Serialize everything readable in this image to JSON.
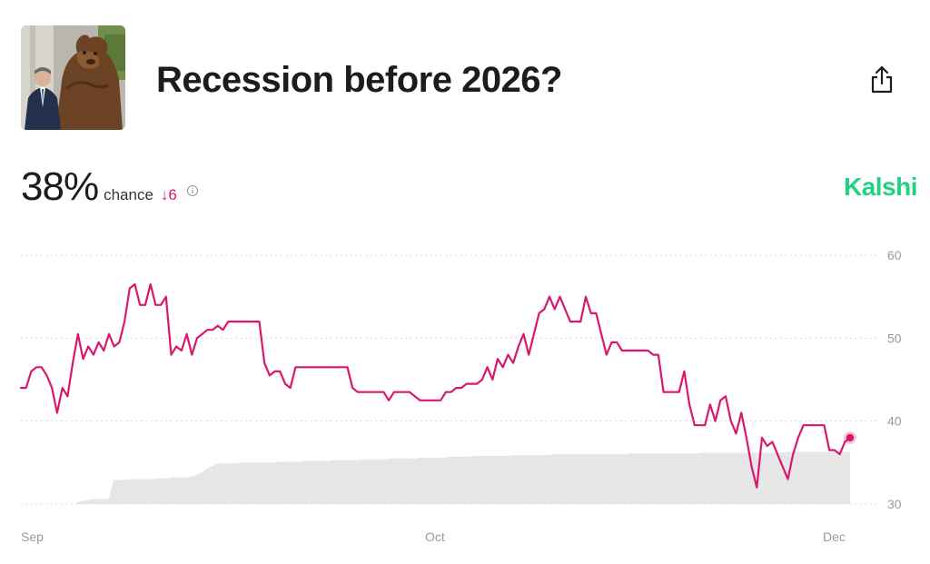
{
  "header": {
    "title": "Recession before 2026?",
    "thumbnail_icon": "bear-statue-photo",
    "share_icon": "share-icon"
  },
  "odds": {
    "value": "38%",
    "chance_label": "chance",
    "delta": "↓6",
    "info_icon": "info-icon"
  },
  "brand": {
    "name": "Kalshi",
    "color": "#1fd185"
  },
  "colors": {
    "line": "#d8186e",
    "volume": "#e6e6e6",
    "grid": "#d0d0d0"
  },
  "chart_data": {
    "type": "line",
    "y_ticks": [
      "60",
      "50",
      "40",
      "30"
    ],
    "x_ticks": [
      "Sep",
      "Oct",
      "Dec"
    ],
    "ylim": [
      30,
      60
    ],
    "grid": true,
    "current_value": 38,
    "series": [
      {
        "values": [
          44,
          44,
          46,
          46.5,
          46.5,
          45.5,
          44,
          41,
          44,
          43,
          47,
          50.5,
          47.5,
          49,
          48,
          49.5,
          48.5,
          50.5,
          49,
          49.5,
          52,
          56,
          56.5,
          54,
          54,
          56.5,
          54,
          54,
          55,
          48,
          49,
          48.5,
          50.5,
          48,
          50,
          50.5,
          51,
          51,
          51.5,
          51,
          52,
          52,
          52,
          52,
          52,
          52,
          52,
          47,
          45.5,
          46,
          46,
          44.5,
          44,
          46.5,
          46.5,
          46.5,
          46.5,
          46.5,
          46.5,
          46.5,
          46.5,
          46.5,
          46.5,
          46.5,
          44,
          43.5,
          43.5,
          43.5,
          43.5,
          43.5,
          43.5,
          42.5,
          43.5,
          43.5,
          43.5,
          43.5,
          43,
          42.5,
          42.5,
          42.5,
          42.5,
          42.5,
          43.5,
          43.5,
          44,
          44,
          44.5,
          44.5,
          44.5,
          45,
          46.5,
          45,
          47.5,
          46.5,
          48,
          47,
          49,
          50.5,
          48,
          50.5,
          53,
          53.5,
          55,
          53.5,
          55,
          53.5,
          52,
          52,
          52,
          55,
          53,
          53,
          50.5,
          48,
          49.5,
          49.5,
          48.5,
          48.5,
          48.5,
          48.5,
          48.5,
          48.5,
          48,
          48,
          43.5,
          43.5,
          43.5,
          43.5,
          46,
          42,
          39.5,
          39.5,
          39.5,
          42,
          40,
          42.5,
          43,
          40,
          38.5,
          41,
          38,
          34.5,
          32,
          38,
          37,
          37.5,
          36,
          34.5,
          33,
          36,
          38,
          39.5,
          39.5,
          39.5,
          39.5,
          39.5,
          36.5,
          36.5,
          36,
          37.5,
          38
        ]
      }
    ],
    "volume_levels": [
      30,
      30,
      30,
      30,
      30,
      30,
      30,
      30,
      30,
      30,
      30,
      30,
      30.3,
      30.4,
      30.5,
      30.6,
      30.6,
      30.6,
      30.6,
      32.9,
      32.9,
      32.9,
      33,
      33,
      33,
      33,
      33,
      33,
      33.1,
      33.1,
      33.1,
      33.2,
      33.2,
      33.2,
      33.2,
      33.3,
      33.5,
      33.8,
      34.2,
      34.5,
      34.8,
      34.9,
      34.9,
      34.9,
      34.9,
      35,
      35,
      35,
      35,
      35,
      35,
      35,
      35,
      35.1,
      35.1,
      35.1,
      35.1,
      35.1,
      35.2,
      35.2,
      35.2,
      35.2,
      35.2,
      35.2,
      35.3,
      35.3,
      35.3,
      35.3,
      35.3,
      35.3,
      35.4,
      35.4,
      35.4,
      35.4,
      35.4,
      35.4,
      35.5,
      35.5,
      35.5,
      35.5,
      35.5,
      35.5,
      35.6,
      35.6,
      35.6,
      35.6,
      35.6,
      35.6,
      35.7,
      35.7,
      35.7,
      35.7,
      35.7,
      35.8,
      35.8,
      35.8,
      35.8,
      35.8,
      35.8,
      35.8,
      35.8,
      35.9,
      35.9,
      35.9,
      35.9,
      35.9,
      35.9,
      35.9,
      35.9,
      36,
      36,
      36,
      36,
      36,
      36,
      36,
      36,
      36,
      36,
      36,
      36,
      36,
      36,
      36,
      36,
      36.1,
      36.1,
      36.1,
      36.1,
      36.1,
      36.1,
      36.1,
      36.1,
      36.1,
      36.1,
      36.1,
      36.1,
      36.1,
      36.1,
      36.1,
      36.2,
      36.2,
      36.2,
      36.2,
      36.2,
      36.2,
      36.2,
      36.2,
      36.2,
      36.2,
      36.2,
      36.2,
      36.2,
      36.2,
      36.2,
      36.2,
      36.2,
      36.3,
      36.3,
      36.3,
      36.3,
      36.3,
      36.3,
      36.3,
      36.3,
      36.3,
      36.3,
      36.3,
      36.3,
      36.3,
      36.3
    ]
  }
}
